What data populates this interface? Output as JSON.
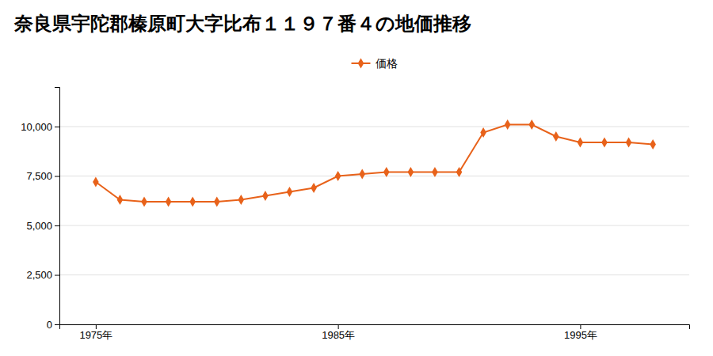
{
  "chart_data": {
    "type": "line",
    "title": "奈良県宇陀郡榛原町大字比布１１９７番４の地価推移",
    "x": [
      1975,
      1976,
      1977,
      1978,
      1979,
      1980,
      1981,
      1982,
      1983,
      1984,
      1985,
      1986,
      1987,
      1988,
      1989,
      1990,
      1991,
      1992,
      1993,
      1994,
      1995,
      1996,
      1997,
      1998
    ],
    "series": [
      {
        "name": "価格",
        "color": "#e8621a",
        "marker": "diamond",
        "values": [
          7200,
          6300,
          6200,
          6200,
          6200,
          6200,
          6300,
          6500,
          6700,
          6900,
          7500,
          7600,
          7700,
          7700,
          7700,
          7700,
          9700,
          10100,
          10100,
          9500,
          9200,
          9200,
          9200,
          9100
        ]
      }
    ],
    "xlim": [
      1973.5,
      1999.5
    ],
    "xticks": [
      {
        "value": 1975,
        "label": "1975年"
      },
      {
        "value": 1985,
        "label": "1985年"
      },
      {
        "value": 1995,
        "label": "1995年"
      }
    ],
    "ylim": [
      0,
      12000
    ],
    "yticks": [
      0,
      {
        "value": 2500,
        "label": "2,500"
      },
      {
        "value": 5000,
        "label": "5,000"
      },
      {
        "value": 7500,
        "label": "7,500"
      },
      {
        "value": 10000,
        "label": "10,000"
      }
    ],
    "grid": true,
    "legend": "top"
  }
}
